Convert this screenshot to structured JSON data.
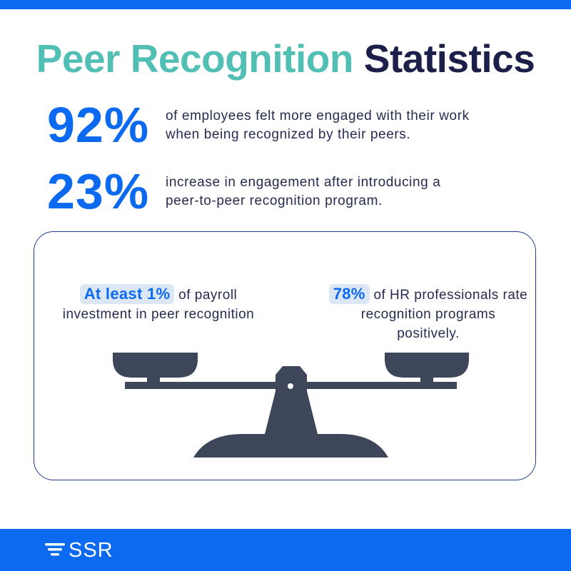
{
  "title": {
    "part1": "Peer Recognition",
    "part2": "Statistics"
  },
  "stats": [
    {
      "value": "92%",
      "text_line1": "of employees felt more engaged with their work",
      "text_line2": "when being recognized by their peers."
    },
    {
      "value": "23%",
      "text_line1": "increase in engagement after introducing a",
      "text_line2": "peer-to-peer recognition program."
    }
  ],
  "scale": {
    "left": {
      "highlight": "At least 1%",
      "text": "of payroll investment in peer recognition"
    },
    "right": {
      "highlight": "78%",
      "text": "of HR professionals rate recognition programs positively."
    }
  },
  "colors": {
    "accent_blue": "#0b6af0",
    "teal": "#52bfb5",
    "navy": "#1b1f4a",
    "scale_gray": "#3e4759",
    "highlight_bg": "#dbe7f5"
  },
  "footer": {
    "brand": "SSR",
    "logo_icon": "stacked-lines-logo-icon"
  }
}
